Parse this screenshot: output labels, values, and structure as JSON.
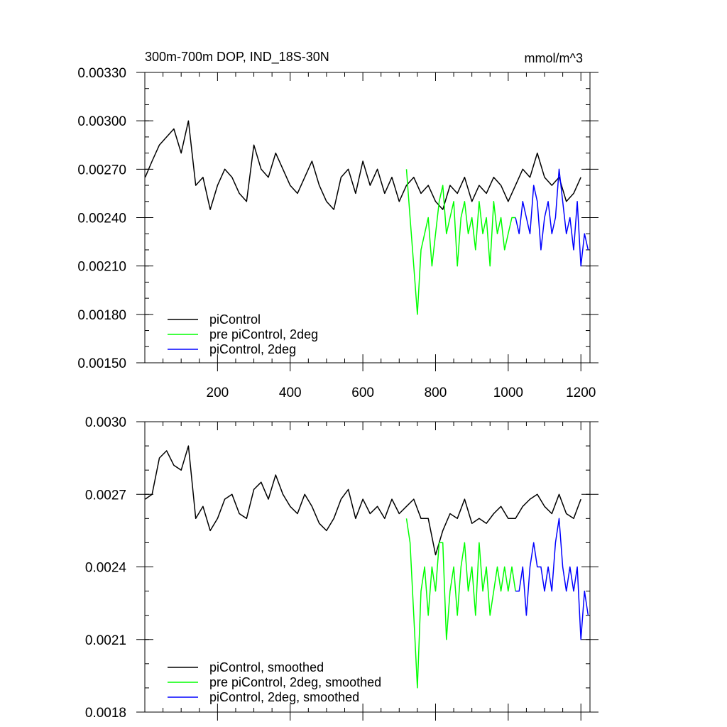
{
  "chart_data": [
    {
      "type": "line",
      "title": "300m-700m DOP, IND_18S-30N",
      "units": "mmol/m^3",
      "xlim": [
        0,
        1225
      ],
      "ylim": [
        0.0015,
        0.0033
      ],
      "xticks": [
        200,
        400,
        600,
        800,
        1000,
        1200
      ],
      "xtick_labels": [
        "200",
        "400",
        "600",
        "800",
        "1000",
        "1200"
      ],
      "yticks": [
        0.0015,
        0.0018,
        0.0021,
        0.0024,
        0.0027,
        0.003,
        0.0033
      ],
      "ytick_labels": [
        "0.00150",
        "0.00180",
        "0.00210",
        "0.00240",
        "0.00270",
        "0.00300",
        "0.00330"
      ],
      "legend_position": "bottom-left",
      "series": [
        {
          "name": "piControl",
          "color": "#000000",
          "x": [
            1,
            20,
            40,
            60,
            80,
            100,
            120,
            140,
            160,
            180,
            200,
            220,
            240,
            260,
            280,
            300,
            320,
            340,
            360,
            380,
            400,
            420,
            440,
            460,
            480,
            500,
            520,
            540,
            560,
            580,
            600,
            620,
            640,
            660,
            680,
            700,
            720,
            740,
            760,
            780,
            800,
            820,
            840,
            860,
            880,
            900,
            920,
            940,
            960,
            980,
            1000,
            1020,
            1040,
            1060,
            1080,
            1100,
            1120,
            1140,
            1160,
            1180,
            1200
          ],
          "y": [
            0.00265,
            0.00275,
            0.00285,
            0.0029,
            0.00295,
            0.0028,
            0.003,
            0.0026,
            0.00265,
            0.00245,
            0.0026,
            0.0027,
            0.00265,
            0.00255,
            0.0025,
            0.00285,
            0.0027,
            0.00265,
            0.0028,
            0.0027,
            0.0026,
            0.00255,
            0.00265,
            0.00275,
            0.0026,
            0.0025,
            0.00245,
            0.00265,
            0.0027,
            0.00255,
            0.00275,
            0.0026,
            0.0027,
            0.00255,
            0.00265,
            0.0025,
            0.0026,
            0.00265,
            0.00255,
            0.0026,
            0.0025,
            0.00245,
            0.0026,
            0.00255,
            0.00265,
            0.0025,
            0.0026,
            0.00255,
            0.00265,
            0.0026,
            0.0025,
            0.0026,
            0.0027,
            0.00265,
            0.0028,
            0.00265,
            0.0026,
            0.00265,
            0.0025,
            0.00255,
            0.00265
          ]
        },
        {
          "name": "pre piControl, 2deg",
          "color": "#00ff00",
          "x": [
            720,
            730,
            740,
            750,
            760,
            770,
            780,
            790,
            800,
            810,
            820,
            830,
            840,
            850,
            860,
            870,
            880,
            890,
            900,
            910,
            920,
            930,
            940,
            950,
            960,
            970,
            980,
            990,
            1000,
            1010,
            1020
          ],
          "y": [
            0.0027,
            0.0024,
            0.0021,
            0.0018,
            0.0022,
            0.0023,
            0.0024,
            0.0021,
            0.0023,
            0.0025,
            0.0026,
            0.0023,
            0.0024,
            0.0025,
            0.0021,
            0.0024,
            0.0025,
            0.0023,
            0.0024,
            0.0022,
            0.0025,
            0.0023,
            0.0024,
            0.0021,
            0.0025,
            0.0023,
            0.0024,
            0.0022,
            0.0023,
            0.0024,
            0.0024
          ]
        },
        {
          "name": "piControl, 2deg",
          "color": "#0000ff",
          "x": [
            1020,
            1030,
            1040,
            1050,
            1060,
            1070,
            1080,
            1090,
            1100,
            1110,
            1120,
            1130,
            1140,
            1150,
            1160,
            1170,
            1180,
            1190,
            1200,
            1210,
            1220
          ],
          "y": [
            0.0024,
            0.0023,
            0.0025,
            0.0024,
            0.0023,
            0.0026,
            0.0025,
            0.0022,
            0.0024,
            0.0025,
            0.0023,
            0.0024,
            0.0027,
            0.0025,
            0.0023,
            0.0024,
            0.0022,
            0.0025,
            0.0021,
            0.0023,
            0.0022
          ]
        }
      ]
    },
    {
      "type": "line",
      "xlim": [
        0,
        1225
      ],
      "ylim": [
        0.0018,
        0.003
      ],
      "xticks": [
        200,
        400,
        600,
        800,
        1000,
        1200
      ],
      "yticks": [
        0.0018,
        0.0021,
        0.0024,
        0.0027,
        0.003
      ],
      "ytick_labels": [
        "0.0018",
        "0.0021",
        "0.0024",
        "0.0027",
        "0.0030"
      ],
      "legend_position": "bottom-left",
      "series": [
        {
          "name": "piControl, smoothed",
          "color": "#000000",
          "x": [
            1,
            20,
            40,
            60,
            80,
            100,
            120,
            140,
            160,
            180,
            200,
            220,
            240,
            260,
            280,
            300,
            320,
            340,
            360,
            380,
            400,
            420,
            440,
            460,
            480,
            500,
            520,
            540,
            560,
            580,
            600,
            620,
            640,
            660,
            680,
            700,
            720,
            740,
            760,
            780,
            800,
            820,
            840,
            860,
            880,
            900,
            920,
            940,
            960,
            980,
            1000,
            1020,
            1040,
            1060,
            1080,
            1100,
            1120,
            1140,
            1160,
            1180,
            1200
          ],
          "y": [
            0.00268,
            0.0027,
            0.00285,
            0.00288,
            0.00282,
            0.0028,
            0.0029,
            0.0026,
            0.00265,
            0.00255,
            0.0026,
            0.00268,
            0.0027,
            0.00262,
            0.0026,
            0.00272,
            0.00275,
            0.00268,
            0.00278,
            0.0027,
            0.00265,
            0.00262,
            0.0027,
            0.00265,
            0.00258,
            0.00255,
            0.0026,
            0.00268,
            0.00272,
            0.0026,
            0.00268,
            0.00262,
            0.00265,
            0.0026,
            0.00268,
            0.00262,
            0.00265,
            0.00268,
            0.0026,
            0.0026,
            0.00245,
            0.00255,
            0.00262,
            0.0026,
            0.00268,
            0.00258,
            0.0026,
            0.00258,
            0.00262,
            0.00265,
            0.0026,
            0.0026,
            0.00265,
            0.00268,
            0.0027,
            0.00265,
            0.00262,
            0.0027,
            0.00262,
            0.0026,
            0.00268
          ]
        },
        {
          "name": "pre piControl, 2deg, smoothed",
          "color": "#00ff00",
          "x": [
            720,
            730,
            740,
            750,
            760,
            770,
            780,
            790,
            800,
            810,
            820,
            830,
            840,
            850,
            860,
            870,
            880,
            890,
            900,
            910,
            920,
            930,
            940,
            950,
            960,
            970,
            980,
            990,
            1000,
            1010,
            1020
          ],
          "y": [
            0.0026,
            0.0025,
            0.0022,
            0.0019,
            0.0023,
            0.0024,
            0.0022,
            0.0024,
            0.0023,
            0.0025,
            0.0025,
            0.0021,
            0.0023,
            0.0024,
            0.0022,
            0.0024,
            0.0025,
            0.0023,
            0.0024,
            0.0022,
            0.0025,
            0.0023,
            0.0024,
            0.0022,
            0.0023,
            0.0024,
            0.0023,
            0.0024,
            0.0023,
            0.0024,
            0.0023
          ]
        },
        {
          "name": "piControl, 2deg, smoothed",
          "color": "#0000ff",
          "x": [
            1020,
            1030,
            1040,
            1050,
            1060,
            1070,
            1080,
            1090,
            1100,
            1110,
            1120,
            1130,
            1140,
            1150,
            1160,
            1170,
            1180,
            1190,
            1200,
            1210,
            1220
          ],
          "y": [
            0.0023,
            0.0023,
            0.0024,
            0.0022,
            0.0024,
            0.0025,
            0.0024,
            0.0024,
            0.0023,
            0.0024,
            0.0023,
            0.0025,
            0.0026,
            0.0024,
            0.0023,
            0.0024,
            0.0023,
            0.0024,
            0.0021,
            0.0023,
            0.0022
          ]
        }
      ]
    }
  ]
}
